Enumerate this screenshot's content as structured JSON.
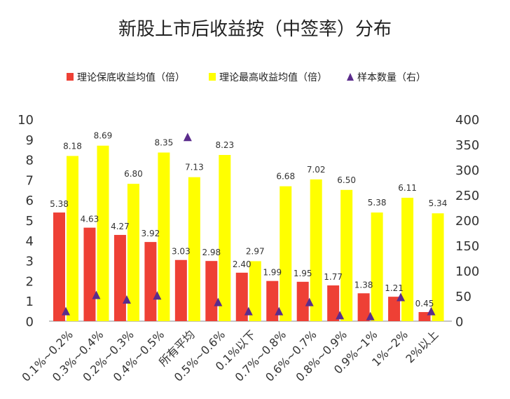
{
  "chart_data": {
    "type": "bar",
    "title": "新股上市后收益按（中签率）分布",
    "categories": [
      "0.1%~0.2%",
      "0.3%~0.4%",
      "0.2%~0.3%",
      "0.4%~0.5%",
      "所有平均",
      "0.5%~0.6%",
      "0.1%以下",
      "0.7%~0.8%",
      "0.6%~0.7%",
      "0.8%~0.9%",
      "0.9%~1%",
      "1%~2%",
      "2%以上"
    ],
    "series": [
      {
        "name": "理论保底收益均值（倍）",
        "axis": "left",
        "color": "#EE4035",
        "values": [
          5.38,
          4.63,
          4.27,
          3.92,
          3.03,
          2.98,
          2.4,
          1.99,
          1.95,
          1.77,
          1.38,
          1.21,
          0.45
        ]
      },
      {
        "name": "理论最高收益均值（倍）",
        "axis": "left",
        "color": "#FFFF00",
        "values": [
          8.18,
          8.69,
          6.8,
          8.35,
          7.13,
          8.23,
          2.97,
          6.68,
          7.02,
          6.5,
          5.38,
          6.11,
          5.34
        ]
      },
      {
        "name": "样本数量（右）",
        "axis": "right",
        "marker": "triangle",
        "color": "#5B2C8C",
        "values": [
          20,
          52,
          43,
          51,
          365,
          38,
          20,
          20,
          38,
          12,
          10,
          48,
          20
        ]
      }
    ],
    "left_ticks": [
      "0",
      "1",
      "2",
      "3",
      "4",
      "5",
      "6",
      "7",
      "8",
      "9",
      "10"
    ],
    "right_ticks": [
      "0",
      "50",
      "100",
      "150",
      "200",
      "250",
      "300",
      "350",
      "400"
    ],
    "ylim_left": [
      0,
      10
    ],
    "ylim_right": [
      0,
      400
    ],
    "grid": false,
    "legend_position": "top"
  }
}
